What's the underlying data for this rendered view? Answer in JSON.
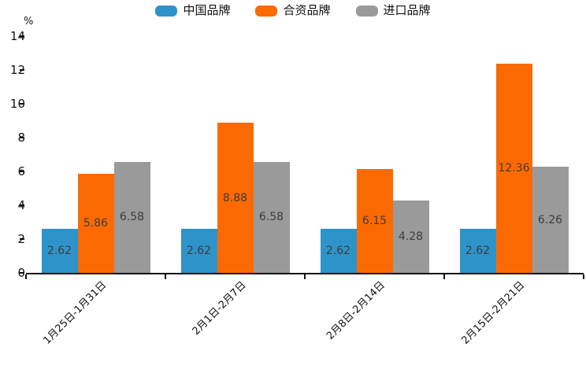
{
  "chart_data": {
    "type": "bar",
    "title": "",
    "xlabel": "",
    "ylabel": "%",
    "categories": [
      "1月25日-1月31日",
      "2月1日-2月7日",
      "2月8日-2月14日",
      "2月15日-2月21日"
    ],
    "series": [
      {
        "name": "中国品牌",
        "color": "#2E93C9",
        "values": [
          2.62,
          2.62,
          2.62,
          2.62
        ]
      },
      {
        "name": "合资品牌",
        "color": "#FB6A02",
        "values": [
          5.86,
          8.88,
          6.15,
          12.36
        ]
      },
      {
        "name": "进口品牌",
        "color": "#9A9A9A",
        "values": [
          6.58,
          6.58,
          4.28,
          6.26
        ]
      }
    ],
    "ylim": [
      0,
      14
    ],
    "yticks": [
      0,
      2,
      4,
      6,
      8,
      10,
      12,
      14
    ],
    "grid": false,
    "legend_position": "top-center",
    "value_labels": "inside-center",
    "axis_color": "#111111"
  }
}
